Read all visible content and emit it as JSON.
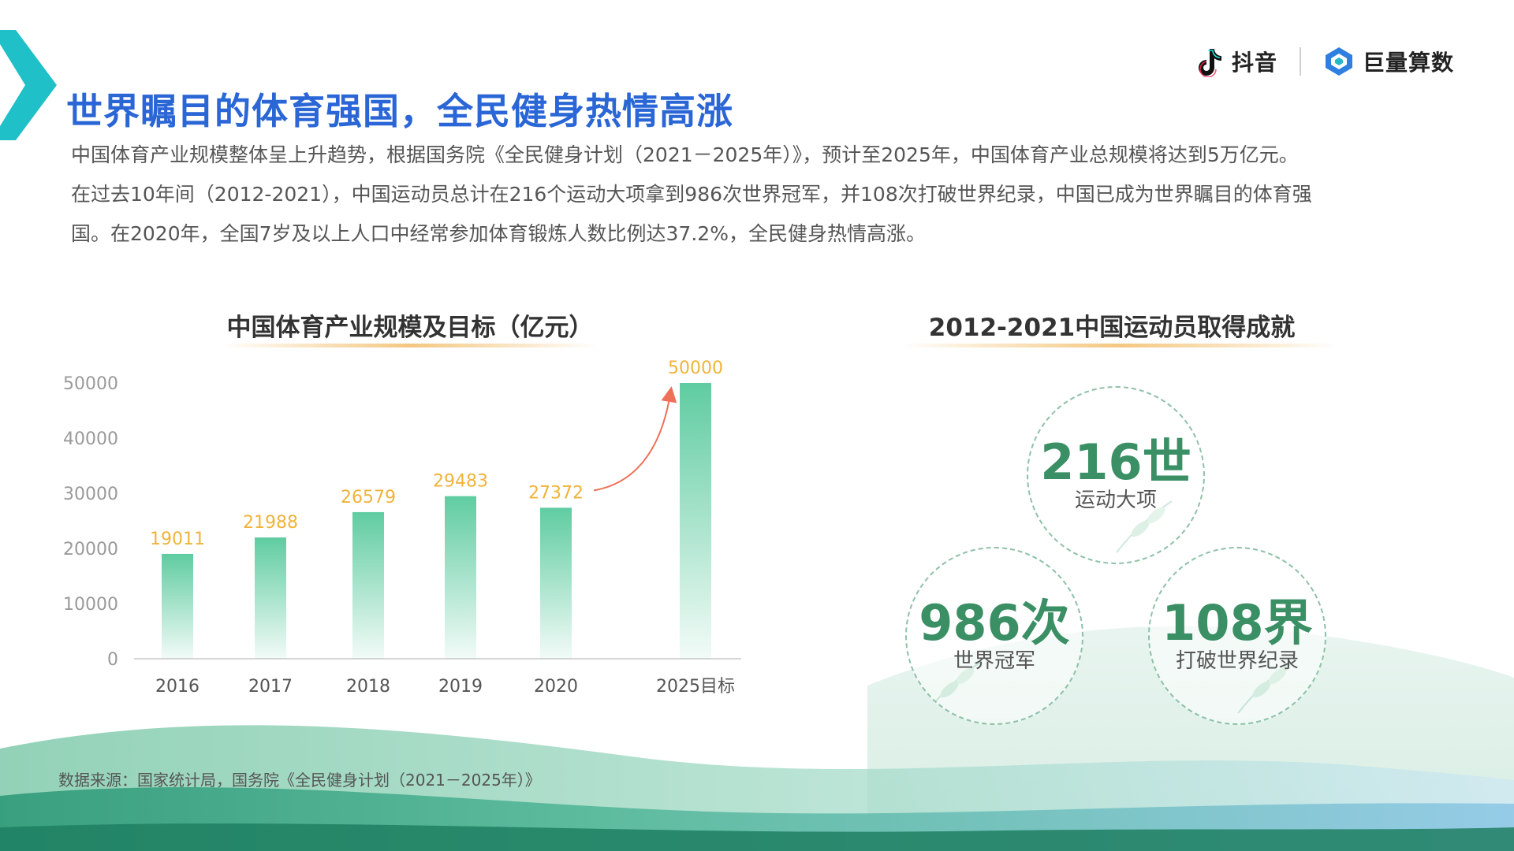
{
  "header": {
    "title": "世界瞩目的体育强国，全民健身热情高涨",
    "logos": [
      {
        "name": "抖音",
        "icon": "douyin-note-icon"
      },
      {
        "name": "巨量算数",
        "icon": "juliang-diamond-icon"
      }
    ]
  },
  "intro": {
    "lines": [
      "中国体育产业规模整体呈上升趋势，根据国务院《全民健身计划（2021－2025年）》，预计至2025年，中国体育产业总规模将达到5万亿元。",
      "在过去10年间（2012-2021），中国运动员总计在216个运动大项拿到986次世界冠军，并108次打破世界纪录，中国已成为世界瞩目的体育强",
      "国。在2020年，全国7岁及以上人口中经常参加体育锻炼人数比例达37.2%，全民健身热情高涨。"
    ]
  },
  "chart_data": {
    "type": "bar",
    "title": "中国体育产业规模及目标（亿元）",
    "categories": [
      "2016",
      "2017",
      "2018",
      "2019",
      "2020",
      "2025目标"
    ],
    "values": [
      19011,
      21988,
      26579,
      29483,
      27372,
      50000
    ],
    "yticks": [
      0,
      10000,
      20000,
      30000,
      40000,
      50000
    ],
    "ylim": [
      0,
      50000
    ],
    "grid": false,
    "bar_color": "#5fcca1",
    "label_color": "#f0b33a",
    "annotation": "arrow from 2020 to 2025目标"
  },
  "achievements": {
    "title": "2012-2021中国运动员取得成就",
    "items": [
      {
        "value": "216世",
        "label": "运动大项"
      },
      {
        "value": "986次",
        "label": "世界冠军"
      },
      {
        "value": "108界",
        "label": "打破世界纪录"
      }
    ]
  },
  "footer": {
    "source": "数据来源：国家统计局，国务院《全民健身计划（2021－2025年）》"
  },
  "colors": {
    "title": "#2a66d6",
    "accent_teal": "#1fc0c8",
    "stat_green": "#3a8f64"
  }
}
